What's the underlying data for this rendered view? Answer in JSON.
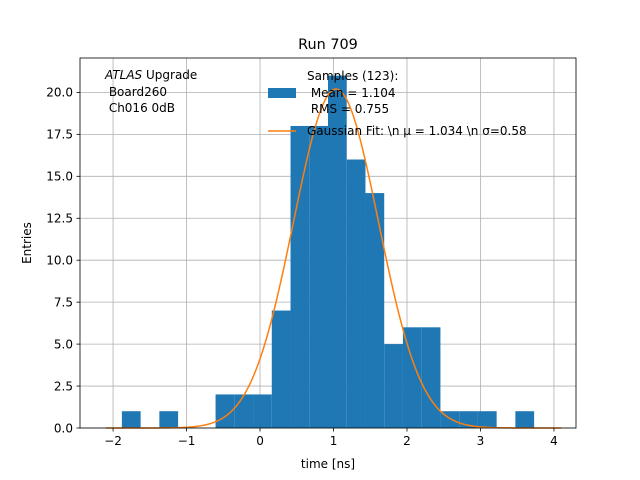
{
  "chart_data": {
    "type": "bar",
    "title": "Run 709",
    "xlabel": "time [ns]",
    "ylabel": "Entries",
    "xlim": [
      -2.45,
      4.3
    ],
    "ylim": [
      0,
      22.05
    ],
    "grid": true,
    "x_ticks": [
      {
        "value": -2,
        "label": "−2"
      },
      {
        "value": -1,
        "label": "−1"
      },
      {
        "value": 0,
        "label": "0"
      },
      {
        "value": 1,
        "label": "1"
      },
      {
        "value": 2,
        "label": "2"
      },
      {
        "value": 3,
        "label": "3"
      },
      {
        "value": 4,
        "label": "4"
      }
    ],
    "y_ticks": [
      {
        "value": 0,
        "label": "0.0"
      },
      {
        "value": 2.5,
        "label": "2.5"
      },
      {
        "value": 5,
        "label": "5.0"
      },
      {
        "value": 7.5,
        "label": "7.5"
      },
      {
        "value": 10,
        "label": "10.0"
      },
      {
        "value": 12.5,
        "label": "12.5"
      },
      {
        "value": 15,
        "label": "15.0"
      },
      {
        "value": 17.5,
        "label": "17.5"
      },
      {
        "value": 20,
        "label": "20.0"
      }
    ],
    "annotation": {
      "italic": "ATLAS",
      "rest": " Upgrade",
      "line2": " Board260",
      "line3": " Ch016 0dB"
    },
    "histogram": {
      "bin_edges": [
        -1.88,
        -1.625,
        -1.37,
        -1.115,
        -0.86,
        -0.605,
        -0.35,
        -0.095,
        0.16,
        0.415,
        0.67,
        0.925,
        1.18,
        1.435,
        1.69,
        1.945,
        2.2,
        2.455,
        2.71,
        2.965,
        3.22,
        3.475,
        3.73
      ],
      "counts": [
        1,
        0,
        1,
        0,
        0,
        2,
        2,
        2,
        7,
        18,
        18,
        21,
        16,
        14,
        5,
        6,
        6,
        1,
        1,
        1,
        0,
        1
      ],
      "color": "#1f77b4",
      "legend": [
        "Samples (123):",
        " Mean = 1.104",
        " RMS = 0.755"
      ]
    },
    "gaussian_fit": {
      "mu": 1.034,
      "sigma": 0.58,
      "amplitude": 20.2,
      "x_range": [
        -2.1,
        4.1
      ],
      "color": "#ff7f0e",
      "legend": "Gaussian Fit: \\n μ = 1.034 \\n σ=0.58"
    },
    "legend_position": "upper-right"
  }
}
